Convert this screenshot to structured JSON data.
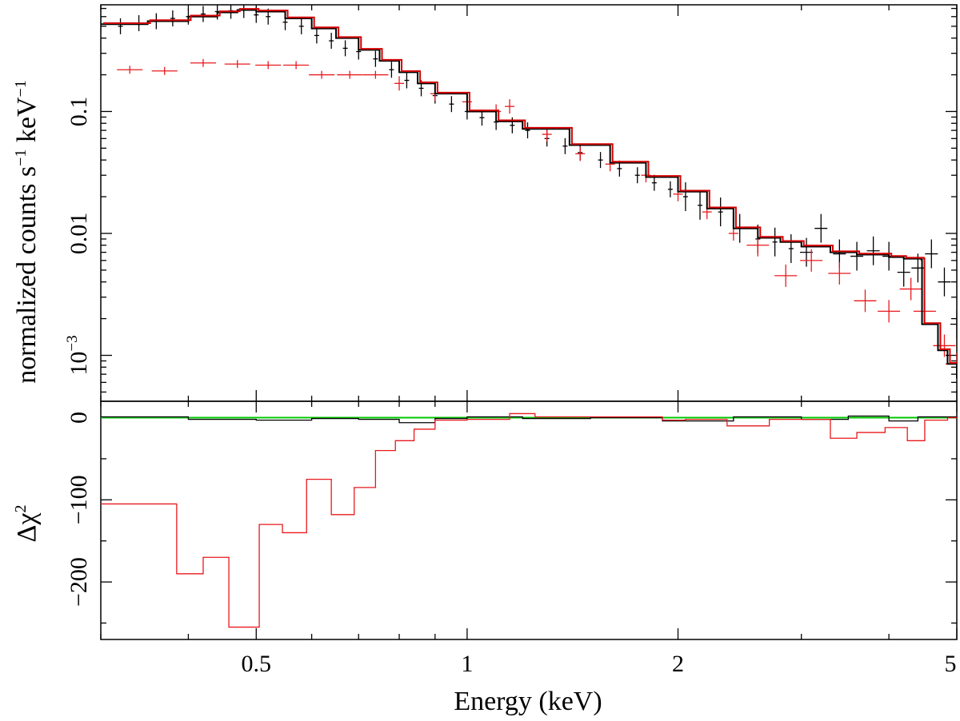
{
  "chart_data": {
    "type": "spectrum-with-residuals",
    "x_axis": {
      "label": "Energy (keV)",
      "scale": "log",
      "range": [
        0.3,
        5.0
      ],
      "tick_labels": [
        {
          "value": 0.5,
          "label": "0.5"
        },
        {
          "value": 1,
          "label": "1"
        },
        {
          "value": 2,
          "label": "2"
        },
        {
          "value": 5,
          "label": "5"
        }
      ],
      "minor_ticks": [
        0.3,
        0.4,
        0.6,
        0.7,
        0.8,
        0.9,
        3,
        4
      ]
    },
    "top_panel": {
      "ylabel_parts": {
        "main": "normalized counts s",
        "exp1": "−1",
        "mid": " keV",
        "exp2": "−1"
      },
      "y_scale": "log",
      "y_range": [
        0.00042,
        0.75
      ],
      "y_tick_labels": [
        {
          "value": 0.1,
          "label": "0.1"
        },
        {
          "value": 0.01,
          "label": "0.01"
        },
        {
          "value": 0.001,
          "label_base": "10",
          "label_exp": "−3"
        }
      ],
      "colors": {
        "black_data": "#000000",
        "red_data": "#e8191d",
        "red_model": "#d40000",
        "black_model": "#000000"
      },
      "black_data_sampled": [
        [
          0.3,
          0.52
        ],
        [
          0.32,
          0.5
        ],
        [
          0.34,
          0.53
        ],
        [
          0.36,
          0.55
        ],
        [
          0.38,
          0.58
        ],
        [
          0.4,
          0.6
        ],
        [
          0.42,
          0.63
        ],
        [
          0.44,
          0.66
        ],
        [
          0.46,
          0.67
        ],
        [
          0.48,
          0.68
        ],
        [
          0.5,
          0.62
        ],
        [
          0.52,
          0.6
        ],
        [
          0.55,
          0.54
        ],
        [
          0.58,
          0.5
        ],
        [
          0.61,
          0.42
        ],
        [
          0.64,
          0.38
        ],
        [
          0.67,
          0.33
        ],
        [
          0.7,
          0.31
        ],
        [
          0.74,
          0.27
        ],
        [
          0.78,
          0.22
        ],
        [
          0.82,
          0.18
        ],
        [
          0.86,
          0.155
        ],
        [
          0.9,
          0.135
        ],
        [
          0.95,
          0.115
        ],
        [
          1.0,
          0.1
        ],
        [
          1.05,
          0.089
        ],
        [
          1.1,
          0.082
        ],
        [
          1.16,
          0.077
        ],
        [
          1.22,
          0.07
        ],
        [
          1.3,
          0.06
        ],
        [
          1.38,
          0.052
        ],
        [
          1.45,
          0.046
        ],
        [
          1.55,
          0.04
        ],
        [
          1.65,
          0.034
        ],
        [
          1.75,
          0.03
        ],
        [
          1.85,
          0.026
        ],
        [
          1.95,
          0.023
        ],
        [
          2.05,
          0.02
        ],
        [
          2.15,
          0.017
        ],
        [
          2.3,
          0.015
        ],
        [
          2.45,
          0.011
        ],
        [
          2.6,
          0.009
        ],
        [
          2.75,
          0.0085
        ],
        [
          2.9,
          0.0075
        ],
        [
          3.05,
          0.007
        ],
        [
          3.2,
          0.011
        ],
        [
          3.4,
          0.0068
        ],
        [
          3.6,
          0.0065
        ],
        [
          3.8,
          0.0072
        ],
        [
          4.0,
          0.0065
        ],
        [
          4.2,
          0.0048
        ],
        [
          4.4,
          0.0052
        ],
        [
          4.6,
          0.0068
        ],
        [
          4.8,
          0.004
        ],
        [
          5.0,
          0.0018
        ]
      ],
      "red_data_sampled": [
        [
          0.33,
          0.22
        ],
        [
          0.37,
          0.215
        ],
        [
          0.42,
          0.25
        ],
        [
          0.47,
          0.245
        ],
        [
          0.52,
          0.24
        ],
        [
          0.57,
          0.24
        ],
        [
          0.62,
          0.2
        ],
        [
          0.68,
          0.2
        ],
        [
          0.74,
          0.2
        ],
        [
          0.8,
          0.17
        ],
        [
          0.9,
          0.14
        ],
        [
          1.0,
          0.12
        ],
        [
          1.1,
          0.1
        ],
        [
          1.15,
          0.11
        ],
        [
          1.3,
          0.065
        ],
        [
          1.45,
          0.045
        ],
        [
          1.6,
          0.037
        ],
        [
          1.8,
          0.03
        ],
        [
          2.0,
          0.021
        ],
        [
          2.2,
          0.015
        ],
        [
          2.4,
          0.01
        ],
        [
          2.6,
          0.008
        ],
        [
          2.85,
          0.0045
        ],
        [
          3.1,
          0.006
        ],
        [
          3.4,
          0.0047
        ],
        [
          3.7,
          0.0028
        ],
        [
          4.0,
          0.0023
        ],
        [
          4.3,
          0.0035
        ],
        [
          4.5,
          0.0023
        ],
        [
          4.8,
          0.0012
        ],
        [
          5.0,
          0.00085
        ]
      ],
      "model": [
        [
          0.3,
          0.52
        ],
        [
          0.35,
          0.55
        ],
        [
          0.4,
          0.6
        ],
        [
          0.44,
          0.65
        ],
        [
          0.47,
          0.68
        ],
        [
          0.5,
          0.66
        ],
        [
          0.55,
          0.58
        ],
        [
          0.6,
          0.48
        ],
        [
          0.65,
          0.4
        ],
        [
          0.7,
          0.32
        ],
        [
          0.75,
          0.26
        ],
        [
          0.8,
          0.21
        ],
        [
          0.85,
          0.17
        ],
        [
          0.9,
          0.14
        ],
        [
          1.0,
          0.1
        ],
        [
          1.1,
          0.083
        ],
        [
          1.2,
          0.072
        ],
        [
          1.4,
          0.053
        ],
        [
          1.6,
          0.038
        ],
        [
          1.8,
          0.029
        ],
        [
          2.0,
          0.022
        ],
        [
          2.2,
          0.016
        ],
        [
          2.4,
          0.011
        ],
        [
          2.6,
          0.0092
        ],
        [
          2.8,
          0.0085
        ],
        [
          3.0,
          0.0078
        ],
        [
          3.3,
          0.007
        ],
        [
          3.6,
          0.0067
        ],
        [
          4.0,
          0.0064
        ],
        [
          4.2,
          0.0062
        ],
        [
          4.45,
          0.0061
        ],
        [
          4.46,
          0.0018
        ],
        [
          4.7,
          0.0011
        ],
        [
          4.85,
          0.00085
        ],
        [
          5.0,
          0.00065
        ]
      ]
    },
    "bottom_panel": {
      "ylabel_parts": {
        "main": "Δχ",
        "exp": "2"
      },
      "y_range": [
        -270,
        20
      ],
      "y_tick_labels": [
        {
          "value": 0,
          "label": "0"
        },
        {
          "value": -100,
          "label": "−100"
        },
        {
          "value": -200,
          "label": "−200"
        }
      ],
      "zero_line_color": "#00c800",
      "black_residuals_sampled": [
        [
          0.3,
          1
        ],
        [
          0.4,
          -2
        ],
        [
          0.5,
          -3
        ],
        [
          0.6,
          -1
        ],
        [
          0.7,
          -2
        ],
        [
          0.8,
          -6
        ],
        [
          0.9,
          -1
        ],
        [
          1.0,
          1
        ],
        [
          1.2,
          -1
        ],
        [
          1.5,
          0
        ],
        [
          1.9,
          -4
        ],
        [
          2.4,
          1
        ],
        [
          3.0,
          -2
        ],
        [
          3.5,
          2
        ],
        [
          4.0,
          -4
        ],
        [
          4.4,
          1
        ],
        [
          5.0,
          1
        ]
      ],
      "red_residuals_steps": [
        {
          "x0": 0.3,
          "x1": 0.385,
          "y": -105
        },
        {
          "x0": 0.385,
          "x1": 0.42,
          "y": -190
        },
        {
          "x0": 0.42,
          "x1": 0.457,
          "y": -170
        },
        {
          "x0": 0.457,
          "x1": 0.505,
          "y": -255
        },
        {
          "x0": 0.505,
          "x1": 0.545,
          "y": -130
        },
        {
          "x0": 0.545,
          "x1": 0.59,
          "y": -140
        },
        {
          "x0": 0.59,
          "x1": 0.64,
          "y": -75
        },
        {
          "x0": 0.64,
          "x1": 0.69,
          "y": -118
        },
        {
          "x0": 0.69,
          "x1": 0.74,
          "y": -85
        },
        {
          "x0": 0.74,
          "x1": 0.79,
          "y": -40
        },
        {
          "x0": 0.79,
          "x1": 0.84,
          "y": -28
        },
        {
          "x0": 0.84,
          "x1": 0.9,
          "y": -14
        },
        {
          "x0": 0.9,
          "x1": 1.0,
          "y": -3
        },
        {
          "x0": 1.0,
          "x1": 1.15,
          "y": -2
        },
        {
          "x0": 1.15,
          "x1": 1.25,
          "y": 5
        },
        {
          "x0": 1.25,
          "x1": 1.9,
          "y": 1
        },
        {
          "x0": 1.9,
          "x1": 2.05,
          "y": -3
        },
        {
          "x0": 2.05,
          "x1": 2.35,
          "y": -2
        },
        {
          "x0": 2.35,
          "x1": 2.7,
          "y": -10
        },
        {
          "x0": 2.7,
          "x1": 3.3,
          "y": -2
        },
        {
          "x0": 3.3,
          "x1": 3.6,
          "y": -25
        },
        {
          "x0": 3.6,
          "x1": 3.95,
          "y": -18
        },
        {
          "x0": 3.95,
          "x1": 4.25,
          "y": -12
        },
        {
          "x0": 4.25,
          "x1": 4.5,
          "y": -28
        },
        {
          "x0": 4.5,
          "x1": 4.85,
          "y": -3
        },
        {
          "x0": 4.85,
          "x1": 5.0,
          "y": 0
        }
      ]
    }
  }
}
